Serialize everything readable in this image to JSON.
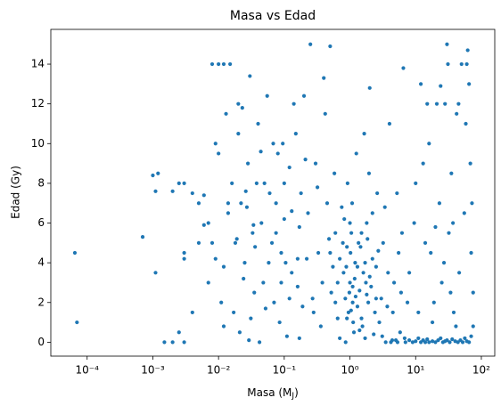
{
  "chart_data": {
    "type": "scatter",
    "title": "Masa vs Edad",
    "xlabel": [
      "Masa (M",
      "J",
      ")"
    ],
    "ylabel": "Edad (Gy)",
    "color": "#1f77b4",
    "xscale": "log",
    "xlim": [
      2.8e-05,
      160
    ],
    "ylim": [
      -0.7,
      15.75
    ],
    "xticks": [
      {
        "value": 0.0001,
        "label": "10⁻⁴"
      },
      {
        "value": 0.001,
        "label": "10⁻³"
      },
      {
        "value": 0.01,
        "label": "10⁻²"
      },
      {
        "value": 0.1,
        "label": "10⁻¹"
      },
      {
        "value": 1,
        "label": "10⁰"
      },
      {
        "value": 10,
        "label": "10¹"
      },
      {
        "value": 100,
        "label": "10²"
      }
    ],
    "yticks": [
      0,
      2,
      4,
      6,
      8,
      10,
      12,
      14
    ],
    "x": [
      6.5e-05,
      7e-05,
      0.0007,
      0.001,
      0.0011,
      0.0012,
      0.0011,
      0.0015,
      0.002,
      0.002,
      0.0025,
      0.003,
      0.003,
      0.003,
      0.0025,
      0.003,
      0.004,
      0.004,
      0.005,
      0.005,
      0.006,
      0.007,
      0.008,
      0.009,
      0.01,
      0.012,
      0.015,
      0.008,
      0.01,
      0.013,
      0.007,
      0.009,
      0.011,
      0.014,
      0.016,
      0.018,
      0.02,
      0.006,
      0.012,
      0.017,
      0.02,
      0.022,
      0.025,
      0.028,
      0.03,
      0.033,
      0.035,
      0.04,
      0.045,
      0.05,
      0.021,
      0.024,
      0.027,
      0.031,
      0.036,
      0.042,
      0.048,
      0.055,
      0.06,
      0.065,
      0.07,
      0.08,
      0.09,
      0.1,
      0.11,
      0.12,
      0.13,
      0.15,
      0.17,
      0.19,
      0.075,
      0.085,
      0.095,
      0.105,
      0.14,
      0.16,
      0.18,
      0.2,
      0.22,
      0.25,
      0.23,
      0.27,
      0.3,
      0.33,
      0.36,
      0.4,
      0.45,
      0.5,
      0.55,
      0.6,
      0.28,
      0.32,
      0.38,
      0.42,
      0.48,
      0.52,
      0.58,
      0.65,
      0.7,
      0.75,
      0.8,
      0.85,
      0.9,
      0.95,
      1,
      1.05,
      1.1,
      1.15,
      1.2,
      1.3,
      0.82,
      0.88,
      0.92,
      0.98,
      1.02,
      1.08,
      1.12,
      1.18,
      1.25,
      1.35,
      1.4,
      1.5,
      1.6,
      1.7,
      1.8,
      1.9,
      2,
      2.2,
      2.4,
      2.6,
      1.45,
      1.55,
      1.65,
      1.75,
      1.85,
      1.95,
      2.1,
      2.3,
      2.5,
      2.8,
      3,
      3.2,
      3.5,
      3.8,
      4,
      4.5,
      5,
      5.5,
      6,
      6.5,
      3.1,
      3.4,
      3.7,
      4.2,
      4.7,
      5.2,
      5.8,
      6.2,
      7,
      7.5,
      8,
      9,
      10,
      11,
      12,
      13,
      14,
      15,
      16,
      18,
      20,
      22,
      24,
      26,
      28,
      30,
      33,
      36,
      40,
      44,
      48,
      52,
      56,
      60,
      65,
      70,
      75,
      4.4,
      5.3,
      6.8,
      8,
      9.5,
      11,
      13,
      15,
      17,
      19,
      21,
      23,
      25,
      28,
      30,
      32,
      35,
      38,
      42,
      46,
      50,
      55,
      60,
      62,
      65,
      68,
      72,
      75,
      10,
      12,
      14,
      16,
      18,
      20,
      24,
      27,
      31,
      34,
      37,
      41,
      45,
      58,
      70,
      0.6,
      0.7,
      0.9,
      1,
      1.1,
      1.3,
      1.5,
      1.8,
      2.2,
      2.7,
      0.5,
      0.65,
      0.78,
      0.86,
      1.04,
      1.22,
      1.4,
      1.7,
      2,
      2.5,
      0.012,
      0.019,
      0.026,
      0.034,
      0.044,
      0.058,
      0.075,
      0.1,
      0.13,
      0.17,
      0.014,
      0.023,
      0.029,
      0.038,
      0.052,
      0.068,
      0.09,
      0.12,
      0.16,
      0.21
    ],
    "y": [
      4.5,
      1,
      5.3,
      8.4,
      3.5,
      8.5,
      7.6,
      0,
      0,
      7.6,
      8,
      8,
      4.5,
      4.2,
      0.5,
      0,
      1.5,
      7.5,
      7,
      5,
      7.4,
      6,
      14,
      10,
      14,
      14,
      14,
      5,
      9.5,
      11.5,
      3,
      4.2,
      2,
      6.5,
      8,
      5,
      12,
      5.9,
      0.8,
      1.5,
      10.5,
      7,
      4,
      9,
      13.4,
      5.5,
      2.5,
      11,
      6,
      8,
      0.5,
      3.2,
      6.8,
      1.2,
      4.8,
      0,
      3,
      12.4,
      7.5,
      5,
      2,
      9.5,
      4.5,
      6.2,
      0.3,
      8.8,
      3.5,
      10.5,
      5.8,
      1.8,
      7,
      1,
      10,
      4,
      12,
      2.8,
      7.5,
      12.4,
      4.2,
      15,
      6.5,
      2.2,
      9,
      4.5,
      0.8,
      13.3,
      7,
      14.9,
      3.8,
      5.5,
      1.5,
      7.8,
      3,
      11.5,
      5.2,
      2.5,
      8.5,
      1.2,
      4.2,
      6.8,
      3.5,
      2.2,
      4.8,
      1.5,
      3,
      5.5,
      2.8,
      0.5,
      4,
      1.8,
      6.2,
      3.8,
      8,
      2.5,
      4.5,
      7,
      1,
      3.2,
      9.5,
      5,
      2.6,
      1.2,
      3.5,
      0.2,
      6,
      2,
      12.8,
      4.2,
      1.5,
      7.5,
      4.8,
      0.8,
      10.5,
      3,
      5.2,
      8.5,
      2.8,
      0.4,
      3.8,
      1,
      2.2,
      5,
      0,
      3.5,
      11,
      1.5,
      0.1,
      4.5,
      2.5,
      13.8,
      0.3,
      6.8,
      1.8,
      0,
      3,
      7.5,
      0.5,
      5.5,
      0,
      2,
      0.1,
      0,
      0.05,
      0.2,
      0,
      0.1,
      0,
      0.15,
      0,
      0.05,
      0,
      0.1,
      0.2,
      0,
      0.05,
      0.1,
      0,
      0.15,
      0.05,
      0,
      0.1,
      0,
      0.2,
      0.05,
      0,
      0.3,
      0.8,
      0.1,
      0,
      0.2,
      3.5,
      6,
      1.5,
      9,
      12,
      4.5,
      2,
      12,
      7,
      3,
      12,
      15,
      5.5,
      8.5,
      1.5,
      11.5,
      3.5,
      14,
      6.5,
      14,
      14.7,
      13,
      9,
      7,
      2.5,
      8,
      13,
      5,
      10,
      1,
      5.8,
      12.9,
      4,
      14,
      2.5,
      6,
      0.8,
      12,
      11,
      4.5,
      2,
      0.2,
      1.2,
      6,
      2,
      3.8,
      5.5,
      2.4,
      6.5,
      4.6,
      4.5,
      3,
      5,
      0,
      1.6,
      2.3,
      0.6,
      4,
      3.3,
      2.2,
      3.8,
      5.2,
      7.6,
      5.9,
      9.6,
      4,
      5.5,
      8,
      6.6,
      0.2,
      7,
      11.8,
      0.1,
      8,
      1.7,
      10,
      3,
      2.2,
      4.2,
      9.2
    ]
  }
}
